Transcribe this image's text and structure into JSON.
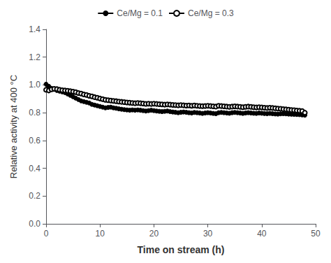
{
  "chart_data": {
    "type": "line",
    "xlabel": "Time on stream (h)",
    "ylabel": "Relative activity at 400 °C",
    "x": [
      0.0,
      0.5,
      1.0,
      1.5,
      2.0,
      2.5,
      3.0,
      3.5,
      4.0,
      4.5,
      5.0,
      5.5,
      6.0,
      6.5,
      7.0,
      7.5,
      8.0,
      8.5,
      9.0,
      9.5,
      10.0,
      10.5,
      11.0,
      11.5,
      12.0,
      12.5,
      13.0,
      13.5,
      14.0,
      14.5,
      15.0,
      15.5,
      16.0,
      16.5,
      17.0,
      17.5,
      18.0,
      18.5,
      19.0,
      19.5,
      20.0,
      20.5,
      21.0,
      21.5,
      22.0,
      22.5,
      23.0,
      23.5,
      24.0,
      24.5,
      25.0,
      25.5,
      26.0,
      26.5,
      27.0,
      27.5,
      28.0,
      28.5,
      29.0,
      29.5,
      30.0,
      30.5,
      31.0,
      31.5,
      32.0,
      32.5,
      33.0,
      33.5,
      34.0,
      34.5,
      35.0,
      35.5,
      36.0,
      36.5,
      37.0,
      37.5,
      38.0,
      38.5,
      39.0,
      39.5,
      40.0,
      40.5,
      41.0,
      41.5,
      42.0,
      42.5,
      43.0,
      43.5,
      44.0,
      44.5,
      45.0,
      45.5,
      46.0,
      46.5,
      47.0,
      47.5,
      48.0
    ],
    "series": [
      {
        "name": "Ce/Mg = 0.1",
        "color": "#000000",
        "marker": "filled_circle",
        "values": [
          1.005,
          0.99,
          0.975,
          0.968,
          0.96,
          0.955,
          0.95,
          0.945,
          0.935,
          0.925,
          0.915,
          0.905,
          0.895,
          0.885,
          0.88,
          0.875,
          0.87,
          0.86,
          0.855,
          0.85,
          0.845,
          0.84,
          0.835,
          0.838,
          0.84,
          0.835,
          0.832,
          0.828,
          0.825,
          0.822,
          0.82,
          0.818,
          0.82,
          0.818,
          0.82,
          0.818,
          0.815,
          0.812,
          0.815,
          0.818,
          0.815,
          0.812,
          0.81,
          0.808,
          0.81,
          0.812,
          0.808,
          0.805,
          0.803,
          0.8,
          0.803,
          0.805,
          0.803,
          0.8,
          0.798,
          0.802,
          0.8,
          0.798,
          0.795,
          0.798,
          0.8,
          0.798,
          0.795,
          0.793,
          0.8,
          0.802,
          0.8,
          0.798,
          0.796,
          0.8,
          0.802,
          0.8,
          0.798,
          0.795,
          0.798,
          0.8,
          0.798,
          0.796,
          0.795,
          0.798,
          0.796,
          0.794,
          0.793,
          0.795,
          0.793,
          0.791,
          0.79,
          0.792,
          0.793,
          0.792,
          0.79,
          0.789,
          0.788,
          0.787,
          0.786,
          0.784,
          0.782
        ]
      },
      {
        "name": "Ce/Mg = 0.3",
        "color": "#000000",
        "marker": "open_circle",
        "values": [
          0.965,
          0.96,
          0.968,
          0.972,
          0.97,
          0.965,
          0.962,
          0.96,
          0.958,
          0.955,
          0.952,
          0.948,
          0.942,
          0.938,
          0.932,
          0.928,
          0.922,
          0.918,
          0.912,
          0.908,
          0.902,
          0.898,
          0.893,
          0.89,
          0.888,
          0.885,
          0.883,
          0.88,
          0.878,
          0.876,
          0.874,
          0.872,
          0.87,
          0.868,
          0.87,
          0.868,
          0.866,
          0.864,
          0.865,
          0.863,
          0.865,
          0.863,
          0.861,
          0.86,
          0.858,
          0.86,
          0.858,
          0.856,
          0.855,
          0.853,
          0.855,
          0.853,
          0.851,
          0.852,
          0.85,
          0.852,
          0.85,
          0.848,
          0.847,
          0.848,
          0.85,
          0.848,
          0.846,
          0.844,
          0.85,
          0.848,
          0.846,
          0.844,
          0.842,
          0.844,
          0.846,
          0.844,
          0.842,
          0.84,
          0.842,
          0.844,
          0.842,
          0.84,
          0.838,
          0.84,
          0.838,
          0.836,
          0.834,
          0.836,
          0.834,
          0.832,
          0.83,
          0.828,
          0.826,
          0.824,
          0.822,
          0.82,
          0.818,
          0.816,
          0.814,
          0.812,
          0.8
        ]
      }
    ],
    "xlim": [
      0,
      50
    ],
    "xticks": [
      0,
      10,
      20,
      30,
      40,
      50
    ],
    "ylim": [
      0.0,
      1.4
    ],
    "yticks": [
      {
        "value": 0.0,
        "label": "0.0"
      },
      0.2,
      0.4,
      0.6,
      0.8,
      {
        "value": 1.0,
        "label": "1.0"
      },
      1.2,
      1.4
    ],
    "grid": false,
    "legend": "upper center"
  }
}
